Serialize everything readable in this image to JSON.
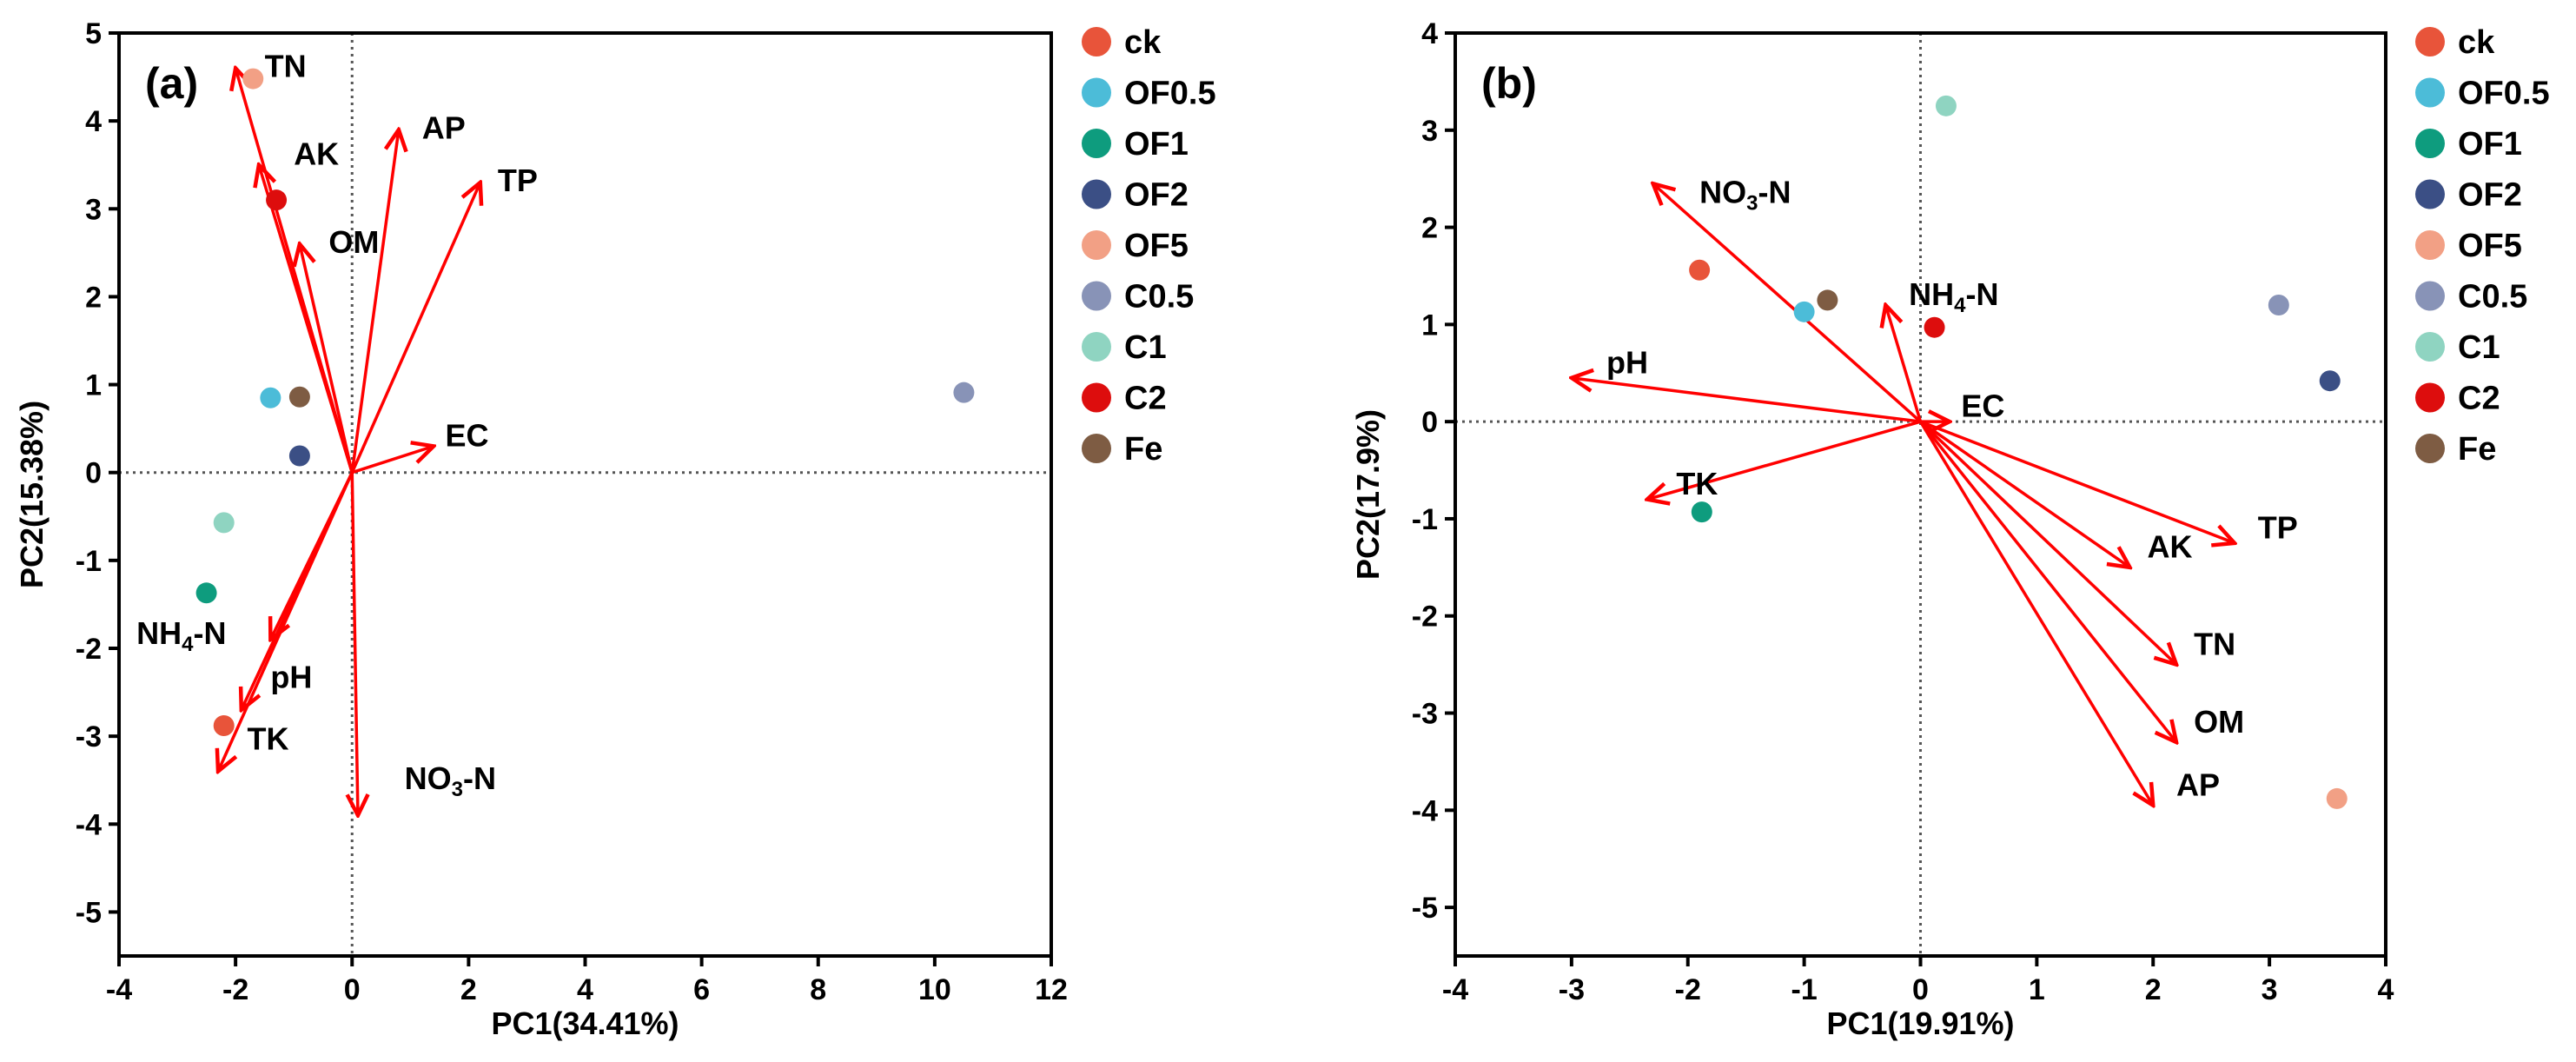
{
  "colors": {
    "vector": "#ff0000",
    "axis": "#000000",
    "zero_line": "#555555"
  },
  "legend": [
    {
      "label": "ck",
      "color": "#e8543a"
    },
    {
      "label": "OF0.5",
      "color": "#4cbcd8"
    },
    {
      "label": "OF1",
      "color": "#0e9c7e"
    },
    {
      "label": "OF2",
      "color": "#3b4f85"
    },
    {
      "label": "OF5",
      "color": "#f2a085"
    },
    {
      "label": "C0.5",
      "color": "#8893b7"
    },
    {
      "label": "C1",
      "color": "#8fd4c1"
    },
    {
      "label": "C2",
      "color": "#dd0d0d"
    },
    {
      "label": "Fe",
      "color": "#7e5c43"
    }
  ],
  "chart_data": [
    {
      "type": "scatter",
      "subtype": "pca-biplot",
      "panel_label": "(a)",
      "xlabel": "PC1(34.41%)",
      "ylabel": "PC2(15.38%)",
      "xlim": [
        -4,
        12
      ],
      "ylim": [
        -5.5,
        5
      ],
      "xticks": [
        -4,
        -2,
        0,
        2,
        4,
        6,
        8,
        10,
        12
      ],
      "yticks": [
        5,
        4,
        3,
        2,
        1,
        0,
        -1,
        -2,
        -3,
        -4,
        -5
      ],
      "zero_lines": true,
      "points": [
        {
          "group": "OF5",
          "x": -1.7,
          "y": 4.48
        },
        {
          "group": "C2",
          "x": -1.3,
          "y": 3.1
        },
        {
          "group": "OF0.5",
          "x": -1.4,
          "y": 0.85
        },
        {
          "group": "Fe",
          "x": -0.9,
          "y": 0.86
        },
        {
          "group": "OF2",
          "x": -0.9,
          "y": 0.19
        },
        {
          "group": "C1",
          "x": -2.2,
          "y": -0.57
        },
        {
          "group": "OF1",
          "x": -2.5,
          "y": -1.37
        },
        {
          "group": "ck",
          "x": -2.2,
          "y": -2.88
        },
        {
          "group": "C0.5",
          "x": 10.5,
          "y": 0.91
        }
      ],
      "vectors": [
        {
          "label": "TN",
          "x": -2.0,
          "y": 4.6
        },
        {
          "label": "AK",
          "x": -1.6,
          "y": 3.5
        },
        {
          "label": "OM",
          "x": -0.9,
          "y": 2.6
        },
        {
          "label": "AP",
          "x": 0.8,
          "y": 3.9
        },
        {
          "label": "TP",
          "x": 2.2,
          "y": 3.3
        },
        {
          "label": "EC",
          "x": 1.4,
          "y": 0.3
        },
        {
          "label": "NH4-N",
          "x": -1.4,
          "y": -1.9
        },
        {
          "label": "pH",
          "x": -1.9,
          "y": -2.7
        },
        {
          "label": "TK",
          "x": -2.3,
          "y": -3.4
        },
        {
          "label": "NO3-N",
          "x": 0.1,
          "y": -3.9
        }
      ],
      "vector_labels": [
        {
          "text": "TN",
          "sub": "",
          "x": -1.5,
          "y": 4.5
        },
        {
          "text": "AK",
          "sub": "",
          "x": -1.0,
          "y": 3.5
        },
        {
          "text": "OM",
          "sub": "",
          "x": -0.4,
          "y": 2.5
        },
        {
          "text": "AP",
          "sub": "",
          "x": 1.2,
          "y": 3.8
        },
        {
          "text": "TP",
          "sub": "",
          "x": 2.5,
          "y": 3.2
        },
        {
          "text": "EC",
          "sub": "",
          "x": 1.6,
          "y": 0.3
        },
        {
          "text": "NH",
          "sub": "4",
          "after": "-N",
          "x": -3.7,
          "y": -1.95
        },
        {
          "text": "pH",
          "sub": "",
          "x": -1.4,
          "y": -2.45
        },
        {
          "text": "TK",
          "sub": "",
          "x": -1.8,
          "y": -3.15
        },
        {
          "text": "NO",
          "sub": "3",
          "after": "-N",
          "x": 0.9,
          "y": -3.6
        }
      ]
    },
    {
      "type": "scatter",
      "subtype": "pca-biplot",
      "panel_label": "(b)",
      "xlabel": "PC1(19.91%)",
      "ylabel": "PC2(17.9%)",
      "xlim": [
        -4,
        4
      ],
      "ylim": [
        -5.5,
        4
      ],
      "xticks": [
        -4,
        -3,
        -2,
        -1,
        0,
        1,
        2,
        3,
        4
      ],
      "yticks": [
        4,
        3,
        2,
        1,
        0,
        -1,
        -2,
        -3,
        -4,
        -5
      ],
      "zero_lines": true,
      "points": [
        {
          "group": "C1",
          "x": 0.22,
          "y": 3.25
        },
        {
          "group": "ck",
          "x": -1.9,
          "y": 1.56
        },
        {
          "group": "OF0.5",
          "x": -1.0,
          "y": 1.13
        },
        {
          "group": "Fe",
          "x": -0.8,
          "y": 1.25
        },
        {
          "group": "C2",
          "x": 0.12,
          "y": 0.97
        },
        {
          "group": "C0.5",
          "x": 3.08,
          "y": 1.2
        },
        {
          "group": "OF2",
          "x": 3.52,
          "y": 0.42
        },
        {
          "group": "OF1",
          "x": -1.88,
          "y": -0.93
        },
        {
          "group": "OF5",
          "x": 3.58,
          "y": -3.88
        }
      ],
      "vectors": [
        {
          "label": "NO3-N",
          "x": -2.3,
          "y": 2.45
        },
        {
          "label": "NH4-N",
          "x": -0.3,
          "y": 1.2
        },
        {
          "label": "pH",
          "x": -3.0,
          "y": 0.45
        },
        {
          "label": "EC",
          "x": 0.25,
          "y": 0.0
        },
        {
          "label": "TK",
          "x": -2.35,
          "y": -0.8
        },
        {
          "label": "TP",
          "x": 2.7,
          "y": -1.25
        },
        {
          "label": "AK",
          "x": 1.8,
          "y": -1.5
        },
        {
          "label": "TN",
          "x": 2.2,
          "y": -2.5
        },
        {
          "label": "OM",
          "x": 2.2,
          "y": -3.3
        },
        {
          "label": "AP",
          "x": 2.0,
          "y": -3.95
        }
      ],
      "vector_labels": [
        {
          "text": "NO",
          "sub": "3",
          "after": "-N",
          "x": -1.9,
          "y": 2.25
        },
        {
          "text": "NH",
          "sub": "4",
          "after": "-N",
          "x": -0.1,
          "y": 1.2
        },
        {
          "text": "pH",
          "sub": "",
          "x": -2.7,
          "y": 0.5
        },
        {
          "text": "EC",
          "sub": "",
          "x": 0.35,
          "y": 0.05
        },
        {
          "text": "TK",
          "sub": "",
          "x": -2.1,
          "y": -0.75
        },
        {
          "text": "TP",
          "sub": "",
          "x": 2.9,
          "y": -1.2
        },
        {
          "text": "AK",
          "sub": "",
          "x": 1.95,
          "y": -1.4
        },
        {
          "text": "TN",
          "sub": "",
          "x": 2.35,
          "y": -2.4
        },
        {
          "text": "OM",
          "sub": "",
          "x": 2.35,
          "y": -3.2
        },
        {
          "text": "AP",
          "sub": "",
          "x": 2.2,
          "y": -3.85
        }
      ]
    }
  ]
}
